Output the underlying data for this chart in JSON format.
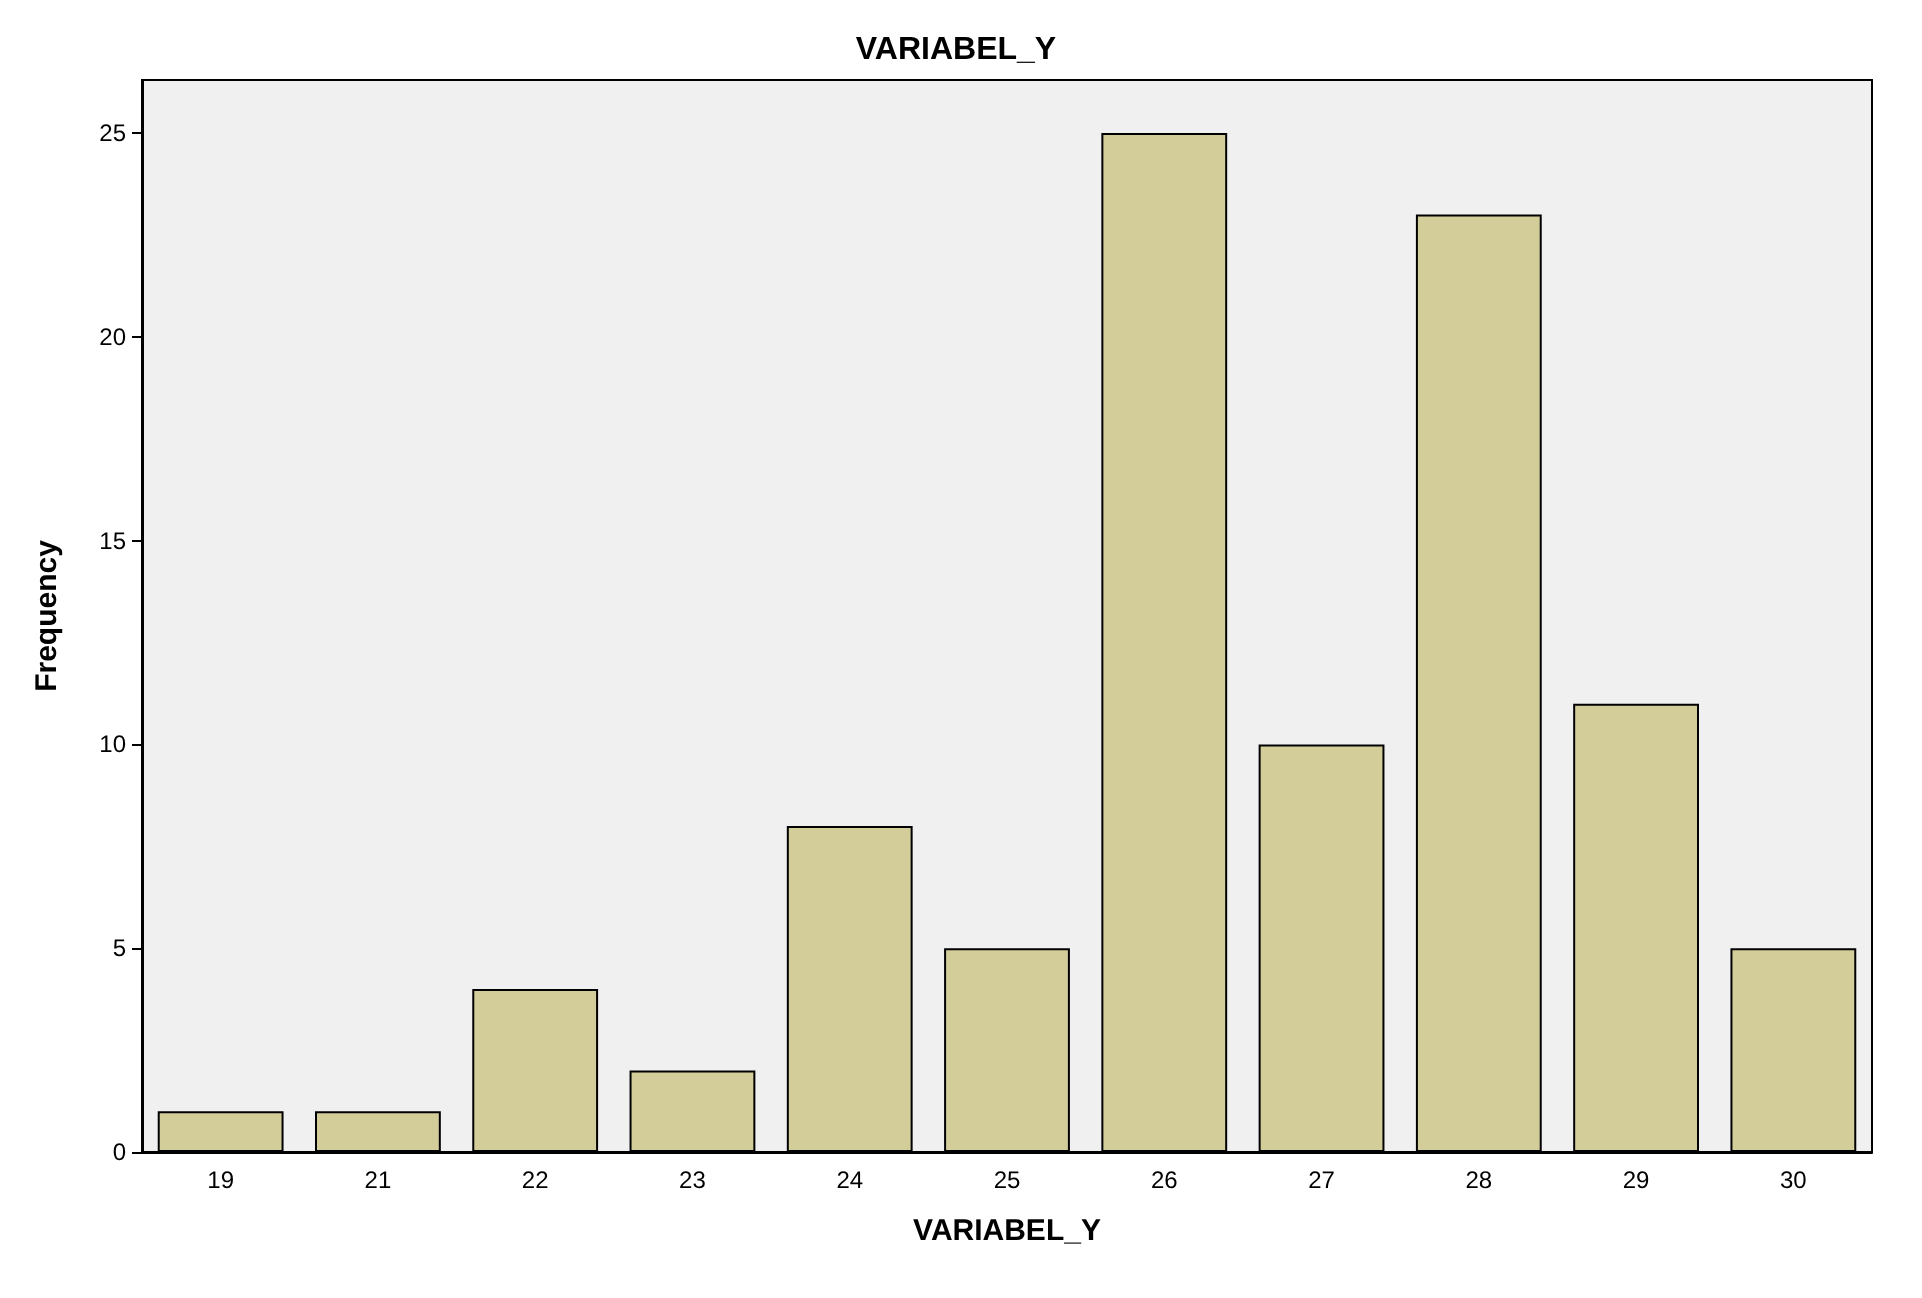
{
  "chart_data": {
    "type": "bar",
    "title": "VARIABEL_Y",
    "xlabel": "VARIABEL_Y",
    "ylabel": "Frequency",
    "categories": [
      "19",
      "21",
      "22",
      "23",
      "24",
      "25",
      "26",
      "27",
      "28",
      "29",
      "30"
    ],
    "values": [
      1,
      1,
      4,
      2,
      8,
      5,
      25,
      10,
      23,
      11,
      5
    ],
    "color": "#d3cd99",
    "ylim": [
      0,
      26.3
    ],
    "yticks": [
      0,
      5,
      10,
      15,
      20,
      25
    ],
    "grid": false
  }
}
